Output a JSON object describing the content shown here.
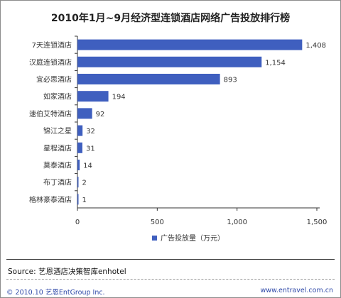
{
  "chart_data": {
    "type": "bar",
    "orientation": "horizontal",
    "title": "2010年1月~9月经济型连锁酒店网络广告投放排行榜",
    "categories": [
      "7天连锁酒店",
      "汉庭连锁酒店",
      "宜必思酒店",
      "如家酒店",
      "速伯艾特酒店",
      "锦江之星",
      "星程酒店",
      "莫泰酒店",
      "布丁酒店",
      "格林豪泰酒店"
    ],
    "series": [
      {
        "name": "广告投放量（万元）",
        "values": [
          1408,
          1154,
          893,
          194,
          92,
          32,
          31,
          14,
          2,
          1
        ],
        "color": "#3f5fbf"
      }
    ],
    "value_labels": [
      "1,408",
      "1,154",
      "893",
      "194",
      "92",
      "32",
      "31",
      "14",
      "2",
      "1"
    ],
    "xlim": [
      0,
      1500
    ],
    "xticks": [
      0,
      500,
      1000,
      1500
    ],
    "xtick_labels": [
      "0",
      "500",
      "1,000",
      "1,500"
    ],
    "grid": false,
    "legend_position": "bottom",
    "colors": {
      "bar": "#3f5fbf",
      "axis": "#333333",
      "text": "#333333",
      "footer": "#2f49a8"
    }
  },
  "source": "Source: 艺恩酒店决策智库enhotel",
  "footer": {
    "left": "© 2010.10  艺恩EntGroup Inc.",
    "right": "www.entravel.com.cn"
  }
}
